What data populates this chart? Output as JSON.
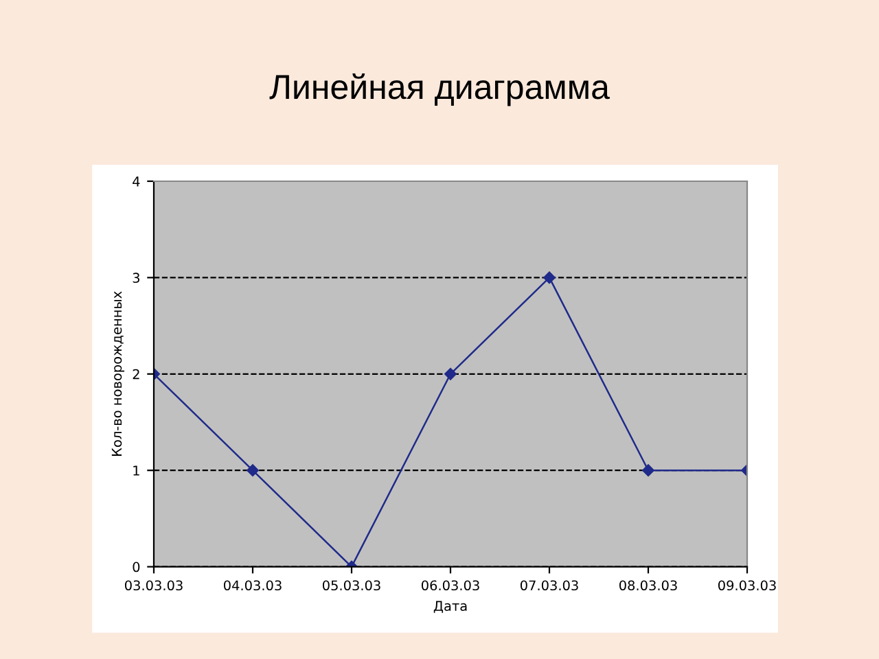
{
  "chart_data": {
    "type": "line",
    "title": "Линейная диаграмма",
    "xlabel": "Дата",
    "ylabel": "Кол-во новорожденных",
    "categories": [
      "03.03.03",
      "04.03.03",
      "05.03.03",
      "06.03.03",
      "07.03.03",
      "08.03.03",
      "09.03.03"
    ],
    "series": [
      {
        "color": "#1f2a8a",
        "values": [
          2,
          1,
          0,
          2,
          3,
          1,
          1
        ]
      }
    ],
    "ylim": [
      0,
      4
    ],
    "yticks": [
      0,
      1,
      2,
      3,
      4
    ],
    "grid": "y",
    "marker": "diamond",
    "line_style": "solid"
  }
}
